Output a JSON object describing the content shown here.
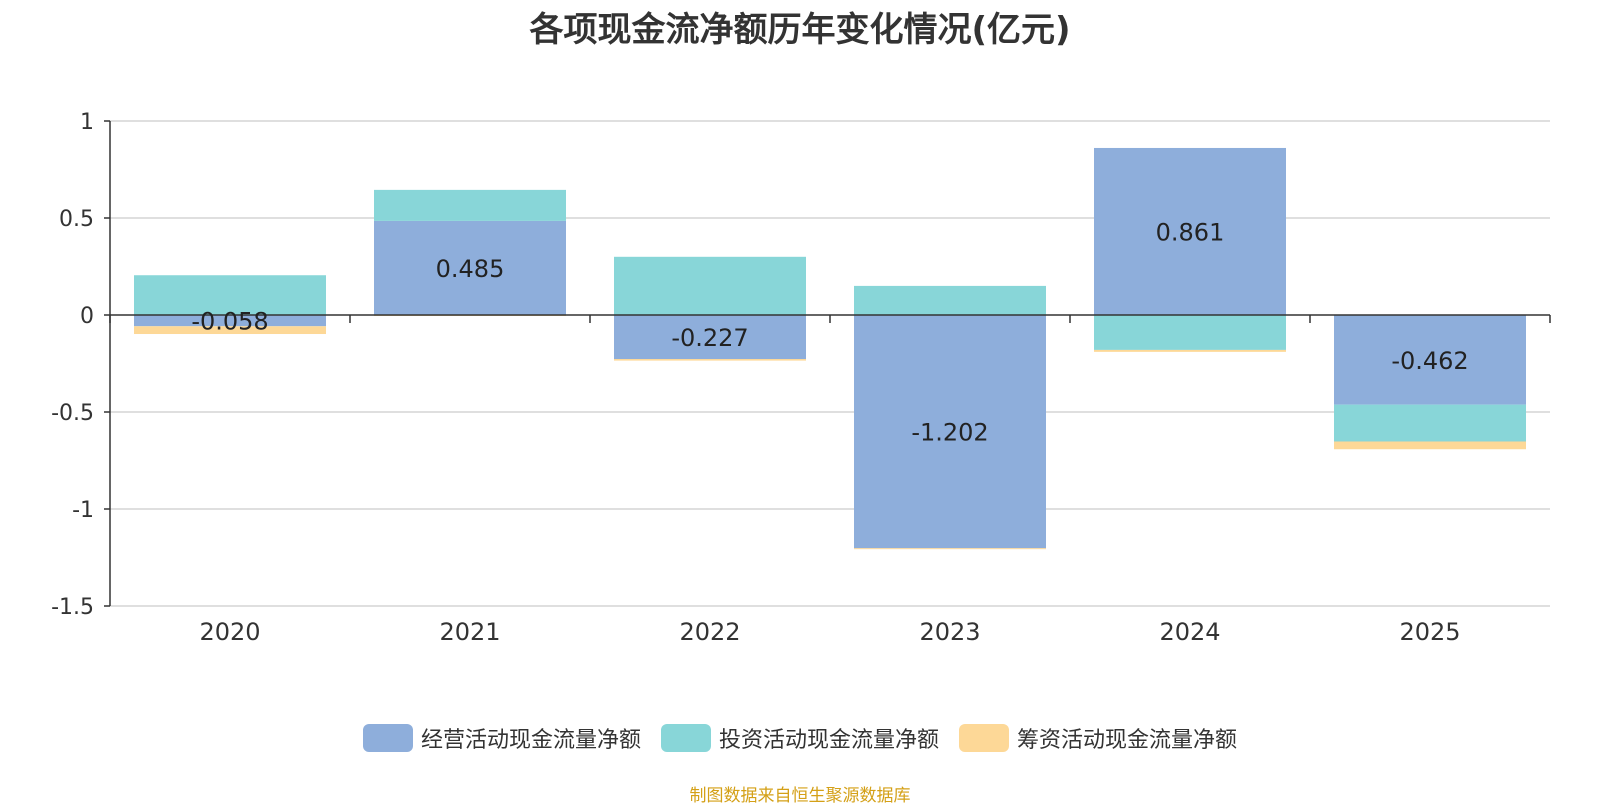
{
  "chart_data": {
    "type": "bar",
    "stacked": true,
    "title": "各项现金流净额历年变化情况(亿元)",
    "categories": [
      "2020",
      "2021",
      "2022",
      "2023",
      "2024",
      "2025"
    ],
    "series": [
      {
        "name": "经营活动现金流量净额",
        "color": "#8eaedb",
        "values": [
          -0.058,
          0.485,
          -0.227,
          -1.202,
          0.861,
          -0.462
        ],
        "labels": [
          "-0.058",
          "0.485",
          "-0.227",
          "-1.202",
          "0.861",
          "-0.462"
        ]
      },
      {
        "name": "投资活动现金流量净额",
        "color": "#88d6d8",
        "values": [
          0.205,
          0.16,
          0.3,
          0.15,
          -0.18,
          -0.19
        ]
      },
      {
        "name": "筹资活动现金流量净额",
        "color": "#fdd897",
        "values": [
          -0.04,
          -0.005,
          -0.008,
          -0.005,
          -0.01,
          -0.04
        ]
      }
    ],
    "yticks": [
      "1",
      "0.5",
      "0",
      "-0.5",
      "-1",
      "-1.5"
    ],
    "ylim": [
      -1.5,
      1
    ],
    "grid": true,
    "legend": "bottom"
  },
  "source": "制图数据来自恒生聚源数据库"
}
